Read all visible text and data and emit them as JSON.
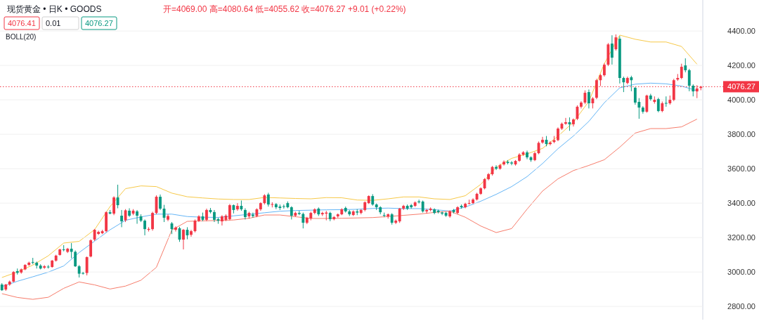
{
  "chart_data": [
    {
      "type": "candlestick",
      "title": "现货黄金 • 日K • GOODS",
      "subtitle": "开=4069.00 高=4080.64 低=4055.62 收=4076.27 +9.01 (+0.22%)",
      "annotations": [
        "4076.41",
        "0.01",
        "4076.27",
        "BOLL(20)"
      ],
      "categories": [
        null,
        null,
        null,
        null,
        null,
        null,
        null,
        null,
        null,
        null,
        null,
        null,
        null,
        null,
        null,
        null,
        null,
        null,
        null,
        null,
        null,
        null,
        null,
        null,
        null,
        null,
        null,
        null,
        null,
        null,
        null,
        null,
        null,
        null,
        null,
        null,
        null,
        null,
        null,
        null,
        null,
        null,
        null,
        null,
        null,
        null,
        null,
        null,
        null,
        null,
        null,
        null,
        null,
        null,
        null,
        null,
        null,
        null,
        null,
        null,
        null,
        null,
        null,
        null,
        null,
        null,
        null,
        null,
        null,
        null,
        null,
        null,
        null,
        null,
        null,
        null,
        null,
        null,
        null,
        null,
        null,
        null,
        null,
        null,
        null,
        null,
        null,
        null,
        null,
        null,
        null,
        null,
        null,
        null,
        null,
        null,
        null,
        null,
        null,
        null,
        null,
        null,
        null,
        null,
        null,
        null,
        null,
        null,
        null,
        null,
        null,
        null,
        null,
        null,
        null,
        null,
        null,
        null,
        null,
        null,
        null,
        null,
        null,
        null,
        null,
        null,
        null,
        null,
        null,
        null,
        null,
        null,
        null,
        null,
        null,
        null,
        null,
        null,
        null,
        null,
        null,
        null,
        null,
        null,
        null,
        null,
        null,
        null,
        null,
        null,
        null,
        null,
        null,
        null,
        null,
        null,
        null,
        null,
        null,
        null,
        null,
        null,
        null,
        null,
        null,
        null,
        null,
        null,
        null,
        null,
        null,
        null,
        null,
        null,
        null,
        null,
        null,
        null,
        null,
        null,
        null,
        null
      ],
      "ohlc": [
        [
          2927,
          2935,
          2890,
          2894
        ],
        [
          2898,
          2931,
          2890,
          2927
        ],
        [
          2927,
          2950,
          2920,
          2944
        ],
        [
          2944,
          3005,
          2940,
          3000
        ],
        [
          3005,
          3020,
          2985,
          2995
        ],
        [
          2997,
          3020,
          2990,
          3015
        ],
        [
          3015,
          3045,
          3010,
          3041
        ],
        [
          3041,
          3060,
          3035,
          3054
        ],
        [
          3058,
          3082,
          3045,
          3054
        ],
        [
          3054,
          3060,
          3020,
          3037
        ],
        [
          3037,
          3045,
          3015,
          3020
        ],
        [
          3025,
          3040,
          3018,
          3033
        ],
        [
          3031,
          3040,
          3020,
          3029
        ],
        [
          3029,
          3070,
          3025,
          3066
        ],
        [
          3066,
          3100,
          3060,
          3095
        ],
        [
          3099,
          3135,
          3095,
          3131
        ],
        [
          3131,
          3156,
          3120,
          3127
        ],
        [
          3117,
          3140,
          3110,
          3135
        ],
        [
          3135,
          3168,
          3080,
          3117
        ],
        [
          3117,
          3125,
          3029,
          3033
        ],
        [
          3033,
          3040,
          2968,
          2990
        ],
        [
          2994,
          3000,
          2985,
          2990
        ],
        [
          2994,
          3090,
          2980,
          3086
        ],
        [
          3090,
          3190,
          3085,
          3184
        ],
        [
          3188,
          3250,
          3180,
          3245
        ],
        [
          3221,
          3240,
          3215,
          3233
        ],
        [
          3225,
          3245,
          3220,
          3237
        ],
        [
          3237,
          3352,
          3230,
          3347
        ],
        [
          3347,
          3360,
          3335,
          3339
        ],
        [
          3339,
          3440,
          3330,
          3433
        ],
        [
          3433,
          3507,
          3370,
          3388
        ],
        [
          3327,
          3360,
          3260,
          3294
        ],
        [
          3300,
          3365,
          3290,
          3358
        ],
        [
          3356,
          3370,
          3320,
          3327
        ],
        [
          3339,
          3365,
          3330,
          3356
        ],
        [
          3352,
          3360,
          3280,
          3327
        ],
        [
          3323,
          3335,
          3290,
          3298
        ],
        [
          3298,
          3305,
          3213,
          3249
        ],
        [
          3245,
          3260,
          3235,
          3250
        ],
        [
          3249,
          3350,
          3240,
          3343
        ],
        [
          3343,
          3445,
          3335,
          3437
        ],
        [
          3437,
          3450,
          3360,
          3368
        ],
        [
          3368,
          3390,
          3290,
          3315
        ],
        [
          3304,
          3335,
          3295,
          3325
        ],
        [
          3282,
          3290,
          3220,
          3249
        ],
        [
          3245,
          3265,
          3235,
          3258
        ],
        [
          3254,
          3262,
          3175,
          3188
        ],
        [
          3188,
          3250,
          3131,
          3245
        ],
        [
          3245,
          3260,
          3190,
          3213
        ],
        [
          3216,
          3245,
          3205,
          3237
        ],
        [
          3237,
          3305,
          3230,
          3298
        ],
        [
          3298,
          3330,
          3290,
          3323
        ],
        [
          3323,
          3345,
          3295,
          3303
        ],
        [
          3303,
          3368,
          3295,
          3360
        ],
        [
          3360,
          3372,
          3340,
          3348
        ],
        [
          3348,
          3360,
          3290,
          3303
        ],
        [
          3307,
          3315,
          3280,
          3298
        ],
        [
          3294,
          3330,
          3270,
          3323
        ],
        [
          3303,
          3335,
          3295,
          3327
        ],
        [
          3307,
          3395,
          3300,
          3388
        ],
        [
          3388,
          3392,
          3340,
          3360
        ],
        [
          3364,
          3400,
          3355,
          3384
        ],
        [
          3384,
          3415,
          3355,
          3364
        ],
        [
          3360,
          3370,
          3305,
          3319
        ],
        [
          3323,
          3350,
          3310,
          3343
        ],
        [
          3333,
          3345,
          3315,
          3325
        ],
        [
          3325,
          3370,
          3318,
          3364
        ],
        [
          3364,
          3405,
          3355,
          3400
        ],
        [
          3400,
          3452,
          3392,
          3445
        ],
        [
          3450,
          3460,
          3380,
          3392
        ],
        [
          3390,
          3405,
          3375,
          3394
        ],
        [
          3394,
          3400,
          3365,
          3376
        ],
        [
          3380,
          3392,
          3360,
          3372
        ],
        [
          3382,
          3392,
          3368,
          3378
        ],
        [
          3400,
          3410,
          3370,
          3376
        ],
        [
          3376,
          3382,
          3305,
          3327
        ],
        [
          3327,
          3350,
          3320,
          3343
        ],
        [
          3343,
          3355,
          3330,
          3337
        ],
        [
          3337,
          3345,
          3253,
          3286
        ],
        [
          3286,
          3320,
          3278,
          3315
        ],
        [
          3311,
          3350,
          3300,
          3343
        ],
        [
          3343,
          3370,
          3335,
          3364
        ],
        [
          3368,
          3375,
          3325,
          3335
        ],
        [
          3335,
          3350,
          3325,
          3343
        ],
        [
          3339,
          3355,
          3300,
          3345
        ],
        [
          3343,
          3350,
          3295,
          3307
        ],
        [
          3307,
          3325,
          3300,
          3319
        ],
        [
          3323,
          3340,
          3315,
          3335
        ],
        [
          3335,
          3370,
          3330,
          3364
        ],
        [
          3372,
          3380,
          3345,
          3352
        ],
        [
          3352,
          3360,
          3325,
          3335
        ],
        [
          3331,
          3358,
          3325,
          3352
        ],
        [
          3352,
          3365,
          3330,
          3345
        ],
        [
          3343,
          3365,
          3335,
          3360
        ],
        [
          3360,
          3410,
          3352,
          3405
        ],
        [
          3400,
          3445,
          3395,
          3441
        ],
        [
          3441,
          3452,
          3385,
          3392
        ],
        [
          3392,
          3398,
          3360,
          3376
        ],
        [
          3376,
          3382,
          3335,
          3347
        ],
        [
          3331,
          3345,
          3318,
          3327
        ],
        [
          3323,
          3340,
          3310,
          3335
        ],
        [
          3335,
          3342,
          3275,
          3286
        ],
        [
          3286,
          3305,
          3278,
          3298
        ],
        [
          3294,
          3372,
          3285,
          3368
        ],
        [
          3368,
          3390,
          3360,
          3384
        ],
        [
          3384,
          3392,
          3360,
          3368
        ],
        [
          3388,
          3395,
          3368,
          3376
        ],
        [
          3384,
          3410,
          3378,
          3404
        ],
        [
          3410,
          3420,
          3398,
          3405
        ],
        [
          3409,
          3415,
          3345,
          3352
        ],
        [
          3352,
          3366,
          3340,
          3360
        ],
        [
          3360,
          3375,
          3352,
          3368
        ],
        [
          3364,
          3370,
          3335,
          3343
        ],
        [
          3356,
          3362,
          3340,
          3348
        ],
        [
          3345,
          3352,
          3330,
          3339
        ],
        [
          3343,
          3350,
          3320,
          3327
        ],
        [
          3323,
          3358,
          3315,
          3352
        ],
        [
          3360,
          3366,
          3340,
          3348
        ],
        [
          3343,
          3382,
          3335,
          3376
        ],
        [
          3384,
          3392,
          3368,
          3376
        ],
        [
          3376,
          3402,
          3370,
          3396
        ],
        [
          3398,
          3420,
          3392,
          3400
        ],
        [
          3400,
          3428,
          3395,
          3421
        ],
        [
          3421,
          3460,
          3415,
          3454
        ],
        [
          3454,
          3492,
          3448,
          3486
        ],
        [
          3486,
          3545,
          3480,
          3539
        ],
        [
          3539,
          3575,
          3532,
          3568
        ],
        [
          3568,
          3616,
          3560,
          3610
        ],
        [
          3610,
          3620,
          3592,
          3600
        ],
        [
          3600,
          3628,
          3594,
          3620
        ],
        [
          3625,
          3648,
          3618,
          3640
        ],
        [
          3640,
          3650,
          3625,
          3633
        ],
        [
          3636,
          3644,
          3620,
          3630
        ],
        [
          3625,
          3650,
          3618,
          3645
        ],
        [
          3646,
          3690,
          3640,
          3682
        ],
        [
          3682,
          3702,
          3675,
          3695
        ],
        [
          3695,
          3705,
          3655,
          3666
        ],
        [
          3666,
          3672,
          3640,
          3650
        ],
        [
          3650,
          3698,
          3644,
          3690
        ],
        [
          3690,
          3758,
          3684,
          3750
        ],
        [
          3752,
          3785,
          3745,
          3768
        ],
        [
          3768,
          3790,
          3730,
          3743
        ],
        [
          3743,
          3760,
          3735,
          3752
        ],
        [
          3755,
          3790,
          3748,
          3766
        ],
        [
          3766,
          3840,
          3760,
          3833
        ],
        [
          3833,
          3868,
          3825,
          3861
        ],
        [
          3861,
          3895,
          3855,
          3870
        ],
        [
          3870,
          3898,
          3820,
          3858
        ],
        [
          3858,
          3892,
          3845,
          3886
        ],
        [
          3890,
          3968,
          3882,
          3960
        ],
        [
          3960,
          3992,
          3950,
          3984
        ],
        [
          3984,
          4055,
          3975,
          4041
        ],
        [
          4045,
          4060,
          3950,
          3980
        ],
        [
          3980,
          4016,
          3950,
          4008
        ],
        [
          4012,
          4122,
          4004,
          4114
        ],
        [
          4114,
          4150,
          4080,
          4143
        ],
        [
          4143,
          4212,
          4135,
          4204
        ],
        [
          4204,
          4330,
          4196,
          4322
        ],
        [
          4327,
          4375,
          4205,
          4245
        ],
        [
          4294,
          4380,
          4286,
          4363
        ],
        [
          4355,
          4370,
          4095,
          4127
        ],
        [
          4127,
          4135,
          4045,
          4102
        ],
        [
          4098,
          4135,
          4090,
          4127
        ],
        [
          4131,
          4140,
          4050,
          4114
        ],
        [
          4070,
          4075,
          3972,
          3984
        ],
        [
          3988,
          4010,
          3890,
          3955
        ],
        [
          3955,
          3963,
          3920,
          3931
        ],
        [
          3931,
          4030,
          3925,
          4025
        ],
        [
          4025,
          4035,
          3995,
          4004
        ],
        [
          3988,
          4020,
          3978,
          4000
        ],
        [
          4004,
          4012,
          3928,
          3935
        ],
        [
          3935,
          3990,
          3928,
          3980
        ],
        [
          3982,
          4020,
          3960,
          3978
        ],
        [
          3980,
          4025,
          3972,
          4000
        ],
        [
          4000,
          4122,
          3992,
          4114
        ],
        [
          4118,
          4150,
          4110,
          4127
        ],
        [
          4127,
          4210,
          4120,
          4192
        ],
        [
          4200,
          4241,
          4160,
          4172
        ],
        [
          4172,
          4180,
          4050,
          4082
        ],
        [
          4082,
          4090,
          4020,
          4049
        ],
        [
          4049,
          4085,
          4010,
          4066
        ],
        [
          4069,
          4080.64,
          4055.62,
          4076.27
        ]
      ],
      "ylim": [
        2723,
        4580
      ],
      "yticks": [
        {
          "value": 2800,
          "label": "2800.00"
        },
        {
          "value": 3000,
          "label": "3000.00"
        },
        {
          "value": 3200,
          "label": "3200.00"
        },
        {
          "value": 3400,
          "label": "3400.00"
        },
        {
          "value": 3600,
          "label": "3600.00"
        },
        {
          "value": 3800,
          "label": "3800.00"
        },
        {
          "value": 4000,
          "label": "4000.00"
        },
        {
          "value": 4200,
          "label": "4200.00"
        },
        {
          "value": 4400,
          "label": "4400.00"
        }
      ],
      "tick_labels": "y",
      "grid": "y",
      "ref_lines": [
        {
          "axis": "y",
          "value": 4076.27,
          "label": "4076.27",
          "color": "#f23645",
          "line_style": "dotted"
        }
      ]
    },
    {
      "type": "line",
      "categories": [
        null,
        null,
        null,
        null,
        null,
        null,
        null,
        null,
        null,
        null,
        null,
        null,
        null,
        null,
        null,
        null,
        null,
        null,
        null,
        null,
        null,
        null,
        null,
        null,
        null,
        null,
        null,
        null,
        null,
        null,
        null,
        null,
        null,
        null,
        null,
        null,
        null,
        null,
        null,
        null,
        null,
        null,
        null,
        null,
        null,
        null
      ],
      "series": [
        {
          "color": "#f7c948",
          "values": [
            2968,
            3000,
            3040,
            3094,
            3168,
            3178,
            3246,
            3380,
            3484,
            3500,
            3496,
            3458,
            3437,
            3430,
            3424,
            3421,
            3421,
            3433,
            3430,
            3427,
            3425,
            3432,
            3431,
            3418,
            3416,
            3425,
            3436,
            3436,
            3425,
            3421,
            3443,
            3509,
            3608,
            3660,
            3686,
            3718,
            3789,
            3870,
            3991,
            4210,
            4376,
            4352,
            4336,
            4336,
            4310,
            4207
          ]
        },
        {
          "color": "#64b5f6",
          "values": [
            2915,
            2946,
            2972,
            2999,
            3035,
            3113,
            3179,
            3245,
            3300,
            3320,
            3336,
            3336,
            3322,
            3318,
            3317,
            3326,
            3335,
            3344,
            3353,
            3357,
            3359,
            3361,
            3362,
            3364,
            3369,
            3371,
            3368,
            3368,
            3362,
            3354,
            3377,
            3411,
            3451,
            3496,
            3554,
            3630,
            3716,
            3790,
            3875,
            3983,
            4070,
            4091,
            4097,
            4093,
            4080,
            4053
          ]
        },
        {
          "color": "#f77c6b",
          "values": [
            2874,
            2852,
            2841,
            2853,
            2905,
            2942,
            2925,
            2901,
            2918,
            2952,
            3027,
            3244,
            3294,
            3297,
            3299,
            3302,
            3312,
            3331,
            3331,
            3321,
            3311,
            3311,
            3312,
            3314,
            3316,
            3322,
            3329,
            3336,
            3346,
            3353,
            3318,
            3267,
            3229,
            3252,
            3365,
            3470,
            3541,
            3589,
            3619,
            3652,
            3725,
            3807,
            3833,
            3833,
            3843,
            3888
          ]
        }
      ],
      "ylim": [
        2723,
        4580
      ],
      "tick_labels": false,
      "line_style": "solid"
    }
  ]
}
